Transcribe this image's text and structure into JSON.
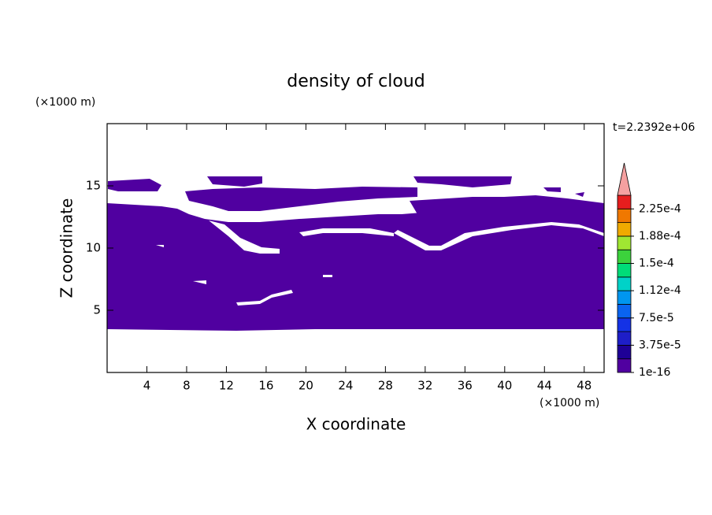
{
  "chart_data": {
    "type": "contour",
    "title": "density of cloud",
    "xlabel": "X coordinate",
    "ylabel": "Z coordinate",
    "xunit": "(×1000 m)",
    "yunit": "(×1000 m)",
    "annotation": "t=2.2392e+06",
    "xlim": [
      0,
      50
    ],
    "ylim": [
      0,
      20
    ],
    "xticks": [
      4,
      8,
      12,
      16,
      20,
      24,
      28,
      32,
      36,
      40,
      44,
      48
    ],
    "yticks": [
      5,
      10,
      15
    ],
    "colorbar": {
      "bounds": [
        1e-16,
        1.875e-05,
        3.75e-05,
        5.625e-05,
        7.5e-05,
        9.375e-05,
        0.0001125,
        0.00013125,
        0.00015,
        0.00016875,
        0.0001875,
        0.00020625,
        0.000225,
        0.00024375
      ],
      "colors": [
        "#5000a0",
        "#1e0096",
        "#1e1ec8",
        "#1432e6",
        "#0a64f0",
        "#0096f0",
        "#00d2c8",
        "#00dc78",
        "#3cd23c",
        "#a0e632",
        "#f0aa00",
        "#f07800",
        "#e61e1e"
      ],
      "extend_color": "#f5a0a0",
      "ticks": [
        1e-16,
        {
          "value": 3.75e-05,
          "label": "3.75e-5"
        },
        {
          "value": 7.5e-05,
          "label": "7.5e-5"
        },
        {
          "value": 0.0001125,
          "label": "1.12e-4"
        },
        {
          "value": 0.00015,
          "label": "1.5e-4"
        },
        {
          "value": 0.0001875,
          "label": "1.88e-4"
        },
        {
          "value": 0.000225,
          "label": "2.25e-4"
        }
      ]
    }
  }
}
